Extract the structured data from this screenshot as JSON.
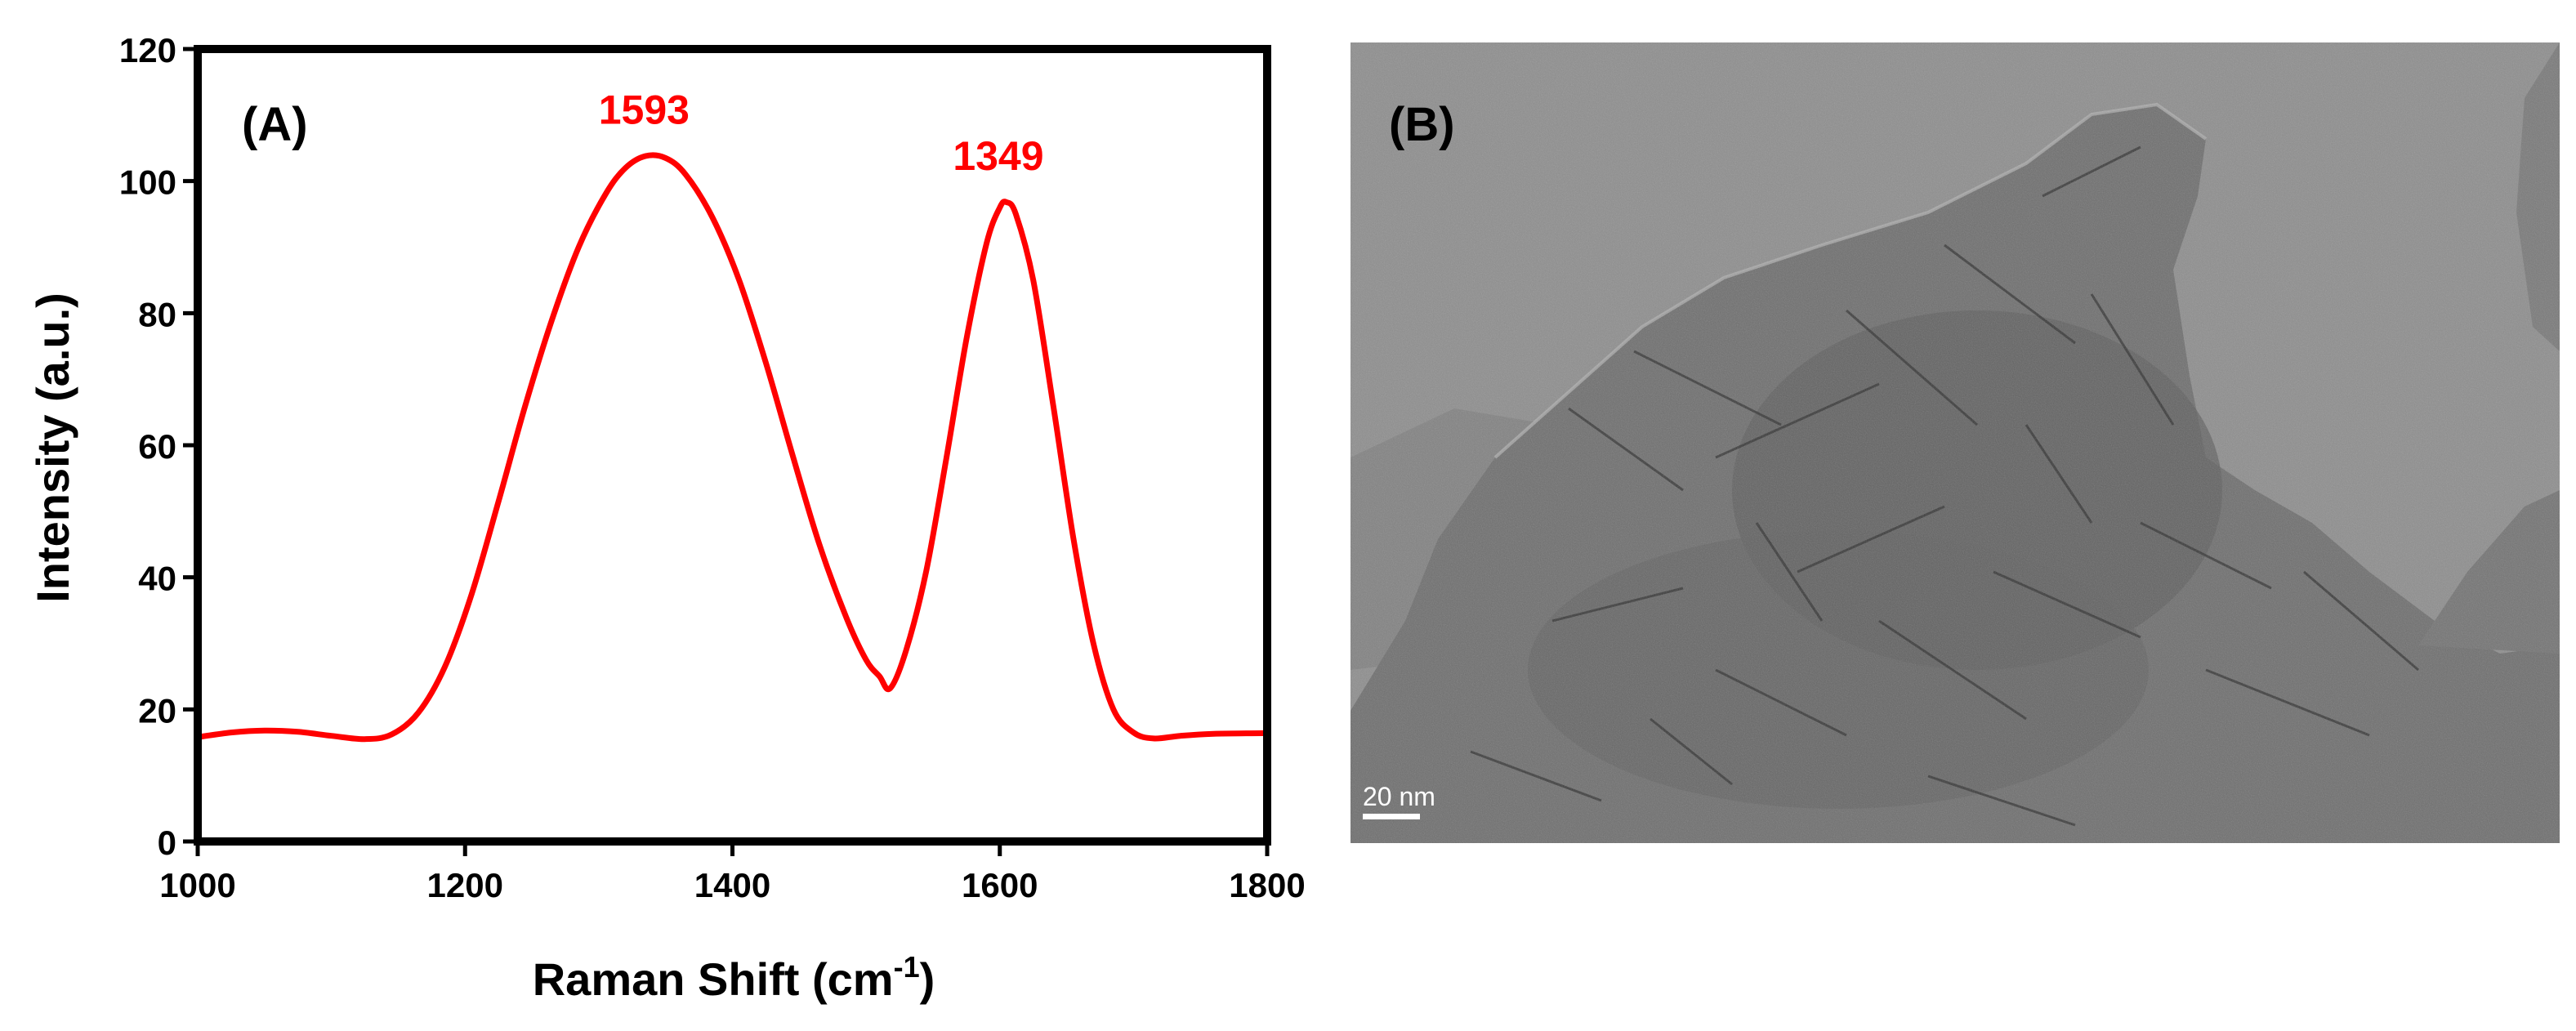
{
  "panels": {
    "a_label": "(A)",
    "b_label": "(B)"
  },
  "micrograph": {
    "scale_bar_label": "20 nm",
    "background_color": "#8e8e8e",
    "sheet_color": "#6f6f6f"
  },
  "chart_data": {
    "type": "line",
    "title": "",
    "xlabel": "Raman Shift (cm",
    "xlabel_sup": "-1",
    "xlabel_end": ")",
    "ylabel": "Intensity (a.u.)",
    "xlim": [
      1000,
      1800
    ],
    "ylim": [
      0,
      120
    ],
    "x_ticks": [
      1000,
      1200,
      1400,
      1600,
      1800
    ],
    "y_ticks": [
      0,
      20,
      40,
      60,
      80,
      100,
      120
    ],
    "grid": false,
    "series": [
      {
        "color": "#ff0000",
        "points": [
          [
            1000,
            15.8
          ],
          [
            1025,
            16.5
          ],
          [
            1050,
            16.8
          ],
          [
            1075,
            16.6
          ],
          [
            1100,
            16.0
          ],
          [
            1125,
            15.5
          ],
          [
            1145,
            16.2
          ],
          [
            1165,
            19.5
          ],
          [
            1185,
            26.5
          ],
          [
            1205,
            37.5
          ],
          [
            1225,
            51.5
          ],
          [
            1245,
            66.0
          ],
          [
            1265,
            79.0
          ],
          [
            1285,
            90.0
          ],
          [
            1305,
            98.0
          ],
          [
            1320,
            102.0
          ],
          [
            1335,
            103.8
          ],
          [
            1350,
            103.5
          ],
          [
            1365,
            101.0
          ],
          [
            1385,
            94.5
          ],
          [
            1405,
            85.0
          ],
          [
            1425,
            72.5
          ],
          [
            1445,
            58.5
          ],
          [
            1465,
            45.0
          ],
          [
            1485,
            34.0
          ],
          [
            1500,
            27.5
          ],
          [
            1510,
            25.0
          ],
          [
            1518,
            23.2
          ],
          [
            1530,
            29.0
          ],
          [
            1545,
            41.0
          ],
          [
            1560,
            58.0
          ],
          [
            1575,
            76.0
          ],
          [
            1590,
            90.5
          ],
          [
            1600,
            96.0
          ],
          [
            1605,
            96.8
          ],
          [
            1612,
            95.0
          ],
          [
            1625,
            85.0
          ],
          [
            1640,
            66.0
          ],
          [
            1655,
            46.0
          ],
          [
            1670,
            30.0
          ],
          [
            1685,
            20.0
          ],
          [
            1700,
            16.5
          ],
          [
            1715,
            15.6
          ],
          [
            1735,
            16.0
          ],
          [
            1760,
            16.3
          ],
          [
            1800,
            16.4
          ]
        ]
      }
    ],
    "annotations": [
      {
        "text": "1593",
        "x": 1340,
        "y": 104,
        "color": "#ff0000"
      },
      {
        "text": "1349",
        "x": 1605,
        "y": 97,
        "color": "#ff0000"
      }
    ]
  }
}
